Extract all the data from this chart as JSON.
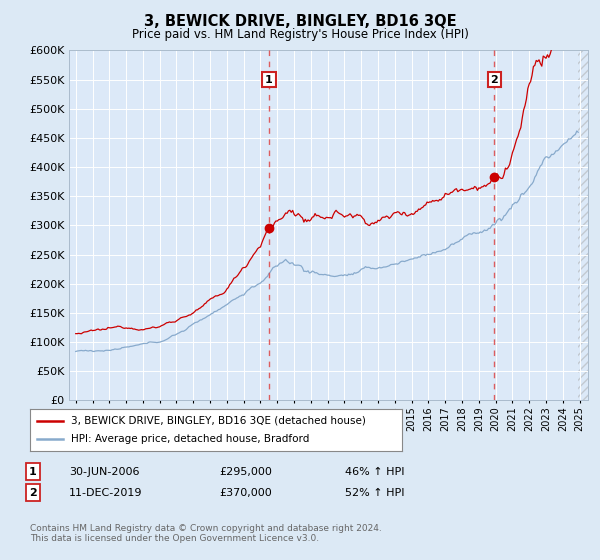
{
  "title": "3, BEWICK DRIVE, BINGLEY, BD16 3QE",
  "subtitle": "Price paid vs. HM Land Registry's House Price Index (HPI)",
  "bg_color": "#dce9f5",
  "plot_bg_color": "#dce9f8",
  "red_line_color": "#cc0000",
  "blue_line_color": "#88aacc",
  "ylim": [
    0,
    600000
  ],
  "yticks": [
    0,
    50000,
    100000,
    150000,
    200000,
    250000,
    300000,
    350000,
    400000,
    450000,
    500000,
    550000,
    600000
  ],
  "x_start_year": 1995,
  "x_end_year": 2025,
  "marker1_year": 2006.5,
  "marker1_value": 295000,
  "marker1_date": "30-JUN-2006",
  "marker1_price": "£295,000",
  "marker1_hpi": "46% ↑ HPI",
  "marker2_year": 2019.92,
  "marker2_value": 370000,
  "marker2_date": "11-DEC-2019",
  "marker2_price": "£370,000",
  "marker2_hpi": "52% ↑ HPI",
  "legend_label1": "3, BEWICK DRIVE, BINGLEY, BD16 3QE (detached house)",
  "legend_label2": "HPI: Average price, detached house, Bradford",
  "footer": "Contains HM Land Registry data © Crown copyright and database right 2024.\nThis data is licensed under the Open Government Licence v3.0."
}
